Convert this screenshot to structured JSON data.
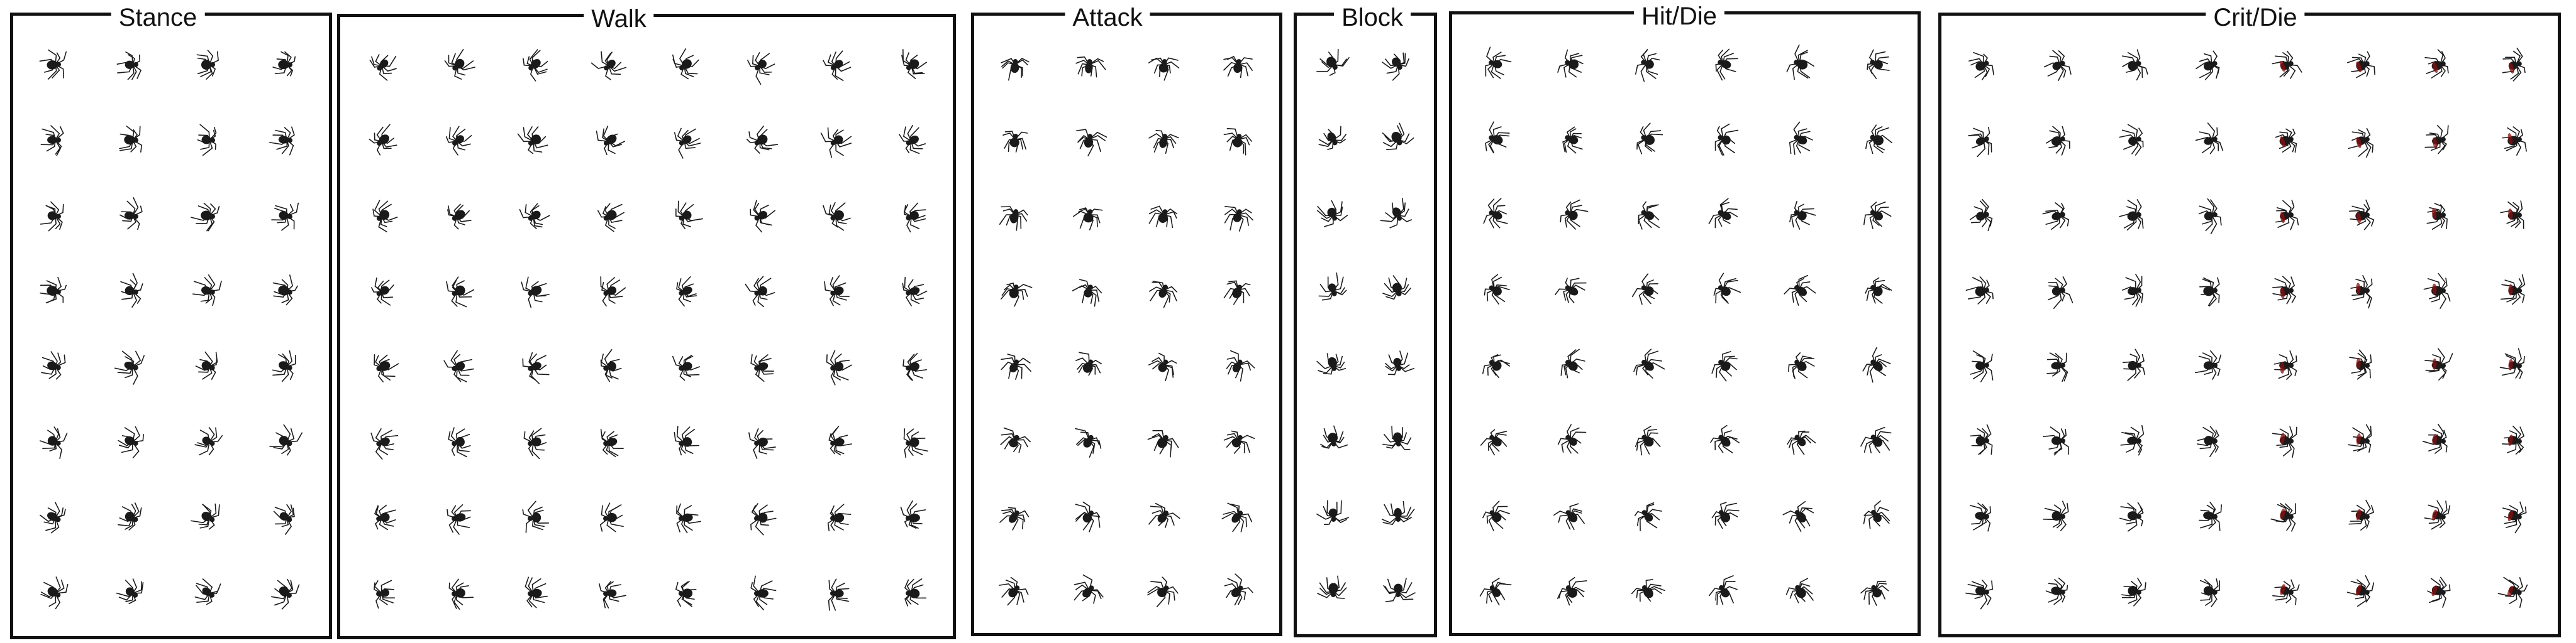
{
  "sheet": {
    "type": "sprite-sheet",
    "subject": "spider",
    "background_color": "#ffffff",
    "border_color": "#111111",
    "sprite_color": "#1a1a1a",
    "highlight_color": "#8a1010"
  },
  "panels": [
    {
      "id": "stance",
      "title": "Stance",
      "columns": 4,
      "rows": 8
    },
    {
      "id": "walk",
      "title": "Walk",
      "columns": 8,
      "rows": 8
    },
    {
      "id": "attack",
      "title": "Attack",
      "columns": 4,
      "rows": 8
    },
    {
      "id": "block",
      "title": "Block",
      "columns": 2,
      "rows": 8
    },
    {
      "id": "hit-die",
      "title": "Hit/Die",
      "columns": 6,
      "rows": 8
    },
    {
      "id": "crit-die",
      "title": "Crit/Die",
      "columns": 8,
      "rows": 8
    }
  ],
  "icons": {
    "frame": "spider-sprite-icon"
  }
}
